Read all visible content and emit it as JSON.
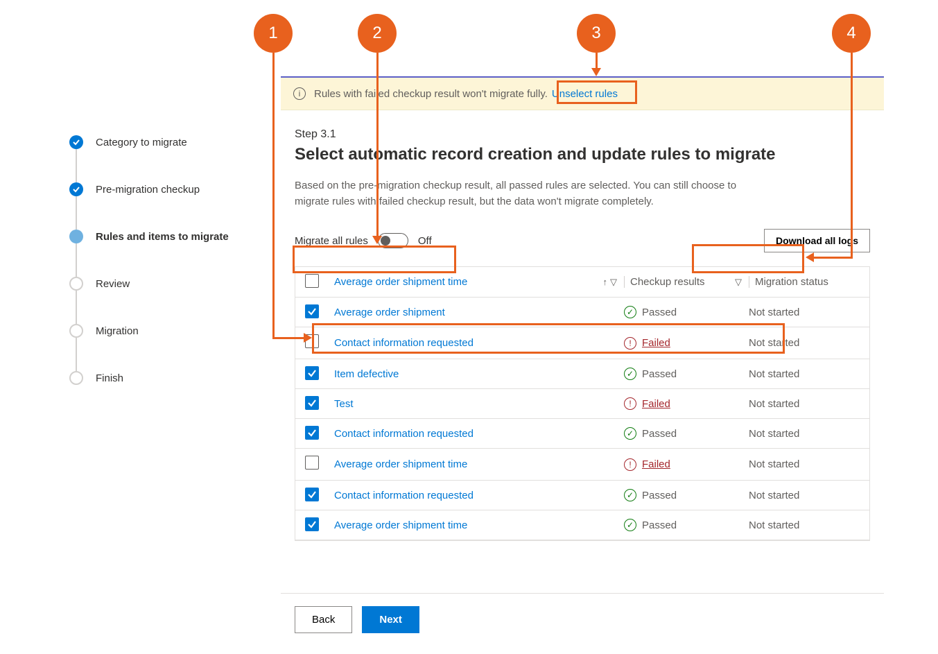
{
  "callouts": {
    "c1": "1",
    "c2": "2",
    "c3": "3",
    "c4": "4"
  },
  "sidebar": {
    "steps": [
      {
        "label": "Category to migrate",
        "state": "done"
      },
      {
        "label": "Pre-migration checkup",
        "state": "done"
      },
      {
        "label": "Rules and items to migrate",
        "state": "current"
      },
      {
        "label": "Review",
        "state": "pending"
      },
      {
        "label": "Migration",
        "state": "pending"
      },
      {
        "label": "Finish",
        "state": "pending"
      }
    ]
  },
  "infobar": {
    "text": "Rules with failed checkup result won't migrate fully.",
    "link": "Unselect rules"
  },
  "header": {
    "step": "Step 3.1",
    "title": "Select automatic record creation and update rules to migrate",
    "desc": "Based on the pre-migration checkup result, all passed rules are selected. You can still choose to migrate rules with failed checkup result, but the data won't migrate completely."
  },
  "toggle": {
    "label": "Migrate all rules",
    "state": "Off"
  },
  "download_btn": "Download all logs",
  "table": {
    "header_name": "Average order shipment time",
    "header_results": "Checkup results",
    "header_status": "Migration status",
    "rows": [
      {
        "checked": true,
        "name": "Average order shipment",
        "result": "Passed",
        "status": "Not started"
      },
      {
        "checked": false,
        "name": "Contact information requested",
        "result": "Failed",
        "status": "Not started"
      },
      {
        "checked": true,
        "name": "Item defective",
        "result": "Passed",
        "status": "Not started"
      },
      {
        "checked": true,
        "name": "Test",
        "result": "Failed",
        "status": "Not started"
      },
      {
        "checked": true,
        "name": "Contact information requested",
        "result": "Passed",
        "status": "Not started"
      },
      {
        "checked": false,
        "name": "Average order shipment time",
        "result": "Failed",
        "status": "Not started"
      },
      {
        "checked": true,
        "name": "Contact information requested",
        "result": "Passed",
        "status": "Not started"
      },
      {
        "checked": true,
        "name": "Average order shipment time",
        "result": "Passed",
        "status": "Not started"
      }
    ]
  },
  "footer": {
    "back": "Back",
    "next": "Next"
  },
  "colors": {
    "accent": "#0078d4",
    "callout": "#e8611e",
    "fail": "#a4262c",
    "pass": "#107c10",
    "infobar_bg": "#fdf5d7"
  }
}
